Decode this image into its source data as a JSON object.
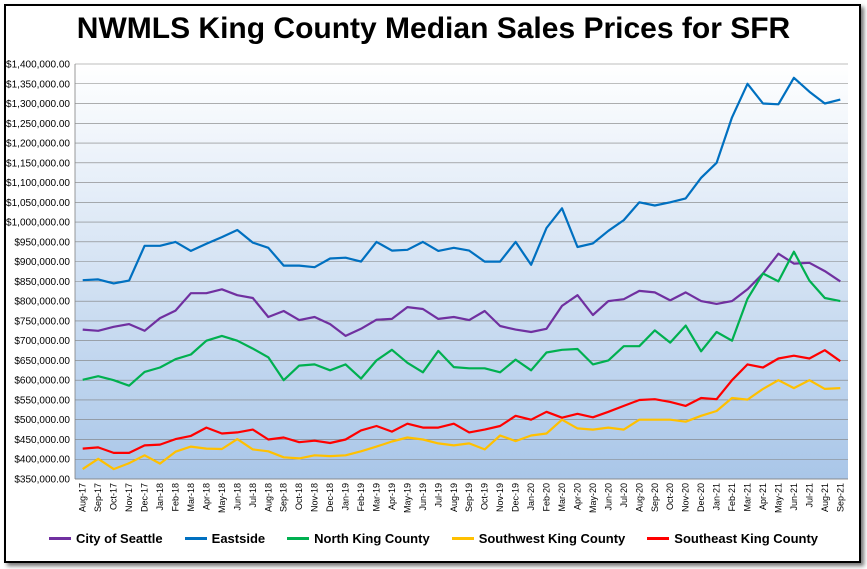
{
  "chart_data": {
    "type": "line",
    "title": "NWMLS King County Median Sales Prices for SFR",
    "ylim": [
      350000,
      1400000
    ],
    "y_ticks": [
      "$350,000.00",
      "$400,000.00",
      "$450,000.00",
      "$500,000.00",
      "$550,000.00",
      "$600,000.00",
      "$650,000.00",
      "$700,000.00",
      "$750,000.00",
      "$800,000.00",
      "$850,000.00",
      "$900,000.00",
      "$950,000.00",
      "$1,000,000.00",
      "$1,050,000.00",
      "$1,100,000.00",
      "$1,150,000.00",
      "$1,200,000.00",
      "$1,250,000.00",
      "$1,300,000.00",
      "$1,350,000.00",
      "$1,400,000.00"
    ],
    "y_tick_values": [
      350000,
      400000,
      450000,
      500000,
      550000,
      600000,
      650000,
      700000,
      750000,
      800000,
      850000,
      900000,
      950000,
      1000000,
      1050000,
      1100000,
      1150000,
      1200000,
      1250000,
      1300000,
      1350000,
      1400000
    ],
    "categories": [
      "Aug-17",
      "Sep-17",
      "Oct-17",
      "Nov-17",
      "Dec-17",
      "Jan-18",
      "Feb-18",
      "Mar-18",
      "Apr-18",
      "May-18",
      "Jun-18",
      "Jul-18",
      "Aug-18",
      "Sep-18",
      "Oct-18",
      "Nov-18",
      "Dec-18",
      "Jan-19",
      "Feb-19",
      "Mar-19",
      "Apr-19",
      "May-19",
      "Jun-19",
      "Jul-19",
      "Aug-19",
      "Sep-19",
      "Oct-19",
      "Nov-19",
      "Dec-19",
      "Jan-20",
      "Feb-20",
      "Mar-20",
      "Apr-20",
      "May-20",
      "Jun-20",
      "Jul-20",
      "Aug-20",
      "Sep-20",
      "Oct-20",
      "Nov-20",
      "Dec-20",
      "Jan-21",
      "Feb-21",
      "Mar-21",
      "Apr-21",
      "May-21",
      "Jun-21",
      "Jul-21",
      "Aug-21",
      "Sep-21"
    ],
    "x_labels": [
      "Aug-17",
      "Sep-17",
      "Oct-17",
      "Nov-17",
      "Dec-17",
      "Jan-18",
      "Feb-18",
      "Mar-18",
      "Apr-18",
      "May-18",
      "Jun-18",
      "Jul-18",
      "Aug-18",
      "Sep-18",
      "Oct-18",
      "Nov-18",
      "Dec-18",
      "Jan-19",
      "Feb-19",
      "Mar-19",
      "Apr-19",
      "May-19",
      "Jun-19",
      "Jul-19",
      "Aug-19",
      "Sep-19",
      "Oct-19",
      "Nov-19",
      "Dec-19",
      "Jan-20",
      "Feb-20",
      "Mar-20",
      "Apr-20",
      "May-20",
      "Jun-20",
      "Jul-20",
      "Aug-20",
      "Sep-20",
      "Oct-20",
      "Nov-20",
      "Dec-20",
      "Jan-21",
      "Feb-21",
      "Mar-21",
      "Apr-21",
      "May-21",
      "Jun-21",
      "Jul-21",
      "Aug-21",
      "Sep-21"
    ],
    "series": [
      {
        "name": "City of Seattle",
        "color": "#7030a0",
        "values": [
          728000,
          725000,
          735000,
          742000,
          725000,
          757000,
          776000,
          820000,
          820000,
          830000,
          815000,
          808000,
          760000,
          775000,
          752000,
          760000,
          742000,
          712000,
          730000,
          753000,
          755000,
          785000,
          780000,
          755000,
          760000,
          752000,
          775000,
          737000,
          728000,
          722000,
          730000,
          788000,
          815000,
          765000,
          800000,
          805000,
          826000,
          822000,
          802000,
          822000,
          800000,
          793000,
          800000,
          830000,
          870000,
          920000,
          895000,
          897000,
          876000,
          850000
        ]
      },
      {
        "name": "Eastside",
        "color": "#0070c0",
        "values": [
          853000,
          855000,
          845000,
          852000,
          940000,
          940000,
          950000,
          927000,
          945000,
          962000,
          980000,
          948000,
          935000,
          890000,
          890000,
          886000,
          908000,
          910000,
          900000,
          950000,
          928000,
          930000,
          950000,
          927000,
          935000,
          928000,
          900000,
          900000,
          950000,
          892000,
          985000,
          1035000,
          937000,
          946000,
          978000,
          1005000,
          1050000,
          1042000,
          1050000,
          1060000,
          1112000,
          1150000,
          1265000,
          1350000,
          1300000,
          1298000,
          1365000,
          1330000,
          1300000,
          1310000
        ]
      },
      {
        "name": "North King County",
        "color": "#00b050",
        "values": [
          601000,
          610000,
          600000,
          586000,
          621000,
          632000,
          653000,
          665000,
          700000,
          712000,
          700000,
          680000,
          658000,
          600000,
          637000,
          640000,
          625000,
          640000,
          604000,
          650000,
          677000,
          644000,
          620000,
          674000,
          633000,
          630000,
          630000,
          620000,
          652000,
          625000,
          670000,
          677000,
          679000,
          640000,
          650000,
          686000,
          686000,
          726000,
          695000,
          738000,
          673000,
          722000,
          700000,
          806000,
          870000,
          850000,
          925000,
          852000,
          808000,
          800000
        ]
      },
      {
        "name": "Southwest King County",
        "color": "#ffc000",
        "values": [
          375000,
          401000,
          375000,
          390000,
          410000,
          389000,
          419000,
          432000,
          427000,
          426000,
          451000,
          425000,
          420000,
          405000,
          402000,
          410000,
          408000,
          410000,
          420000,
          432000,
          445000,
          455000,
          450000,
          440000,
          435000,
          440000,
          425000,
          460000,
          446000,
          460000,
          465000,
          500000,
          478000,
          475000,
          480000,
          475000,
          500000,
          500000,
          500000,
          495000,
          510000,
          522000,
          555000,
          551000,
          578000,
          600000,
          580000,
          600000,
          578000,
          580000
        ]
      },
      {
        "name": "Southeast King County",
        "color": "#ff0000",
        "values": [
          427000,
          430000,
          416000,
          416000,
          435000,
          437000,
          451000,
          459000,
          480000,
          465000,
          468000,
          475000,
          450000,
          455000,
          443000,
          447000,
          441000,
          450000,
          473000,
          484000,
          470000,
          490000,
          480000,
          480000,
          490000,
          468000,
          475000,
          484000,
          510000,
          500000,
          520000,
          505000,
          515000,
          506000,
          520000,
          535000,
          550000,
          552000,
          545000,
          535000,
          555000,
          552000,
          600000,
          640000,
          632000,
          655000,
          662000,
          655000,
          676000,
          648000
        ]
      }
    ]
  }
}
